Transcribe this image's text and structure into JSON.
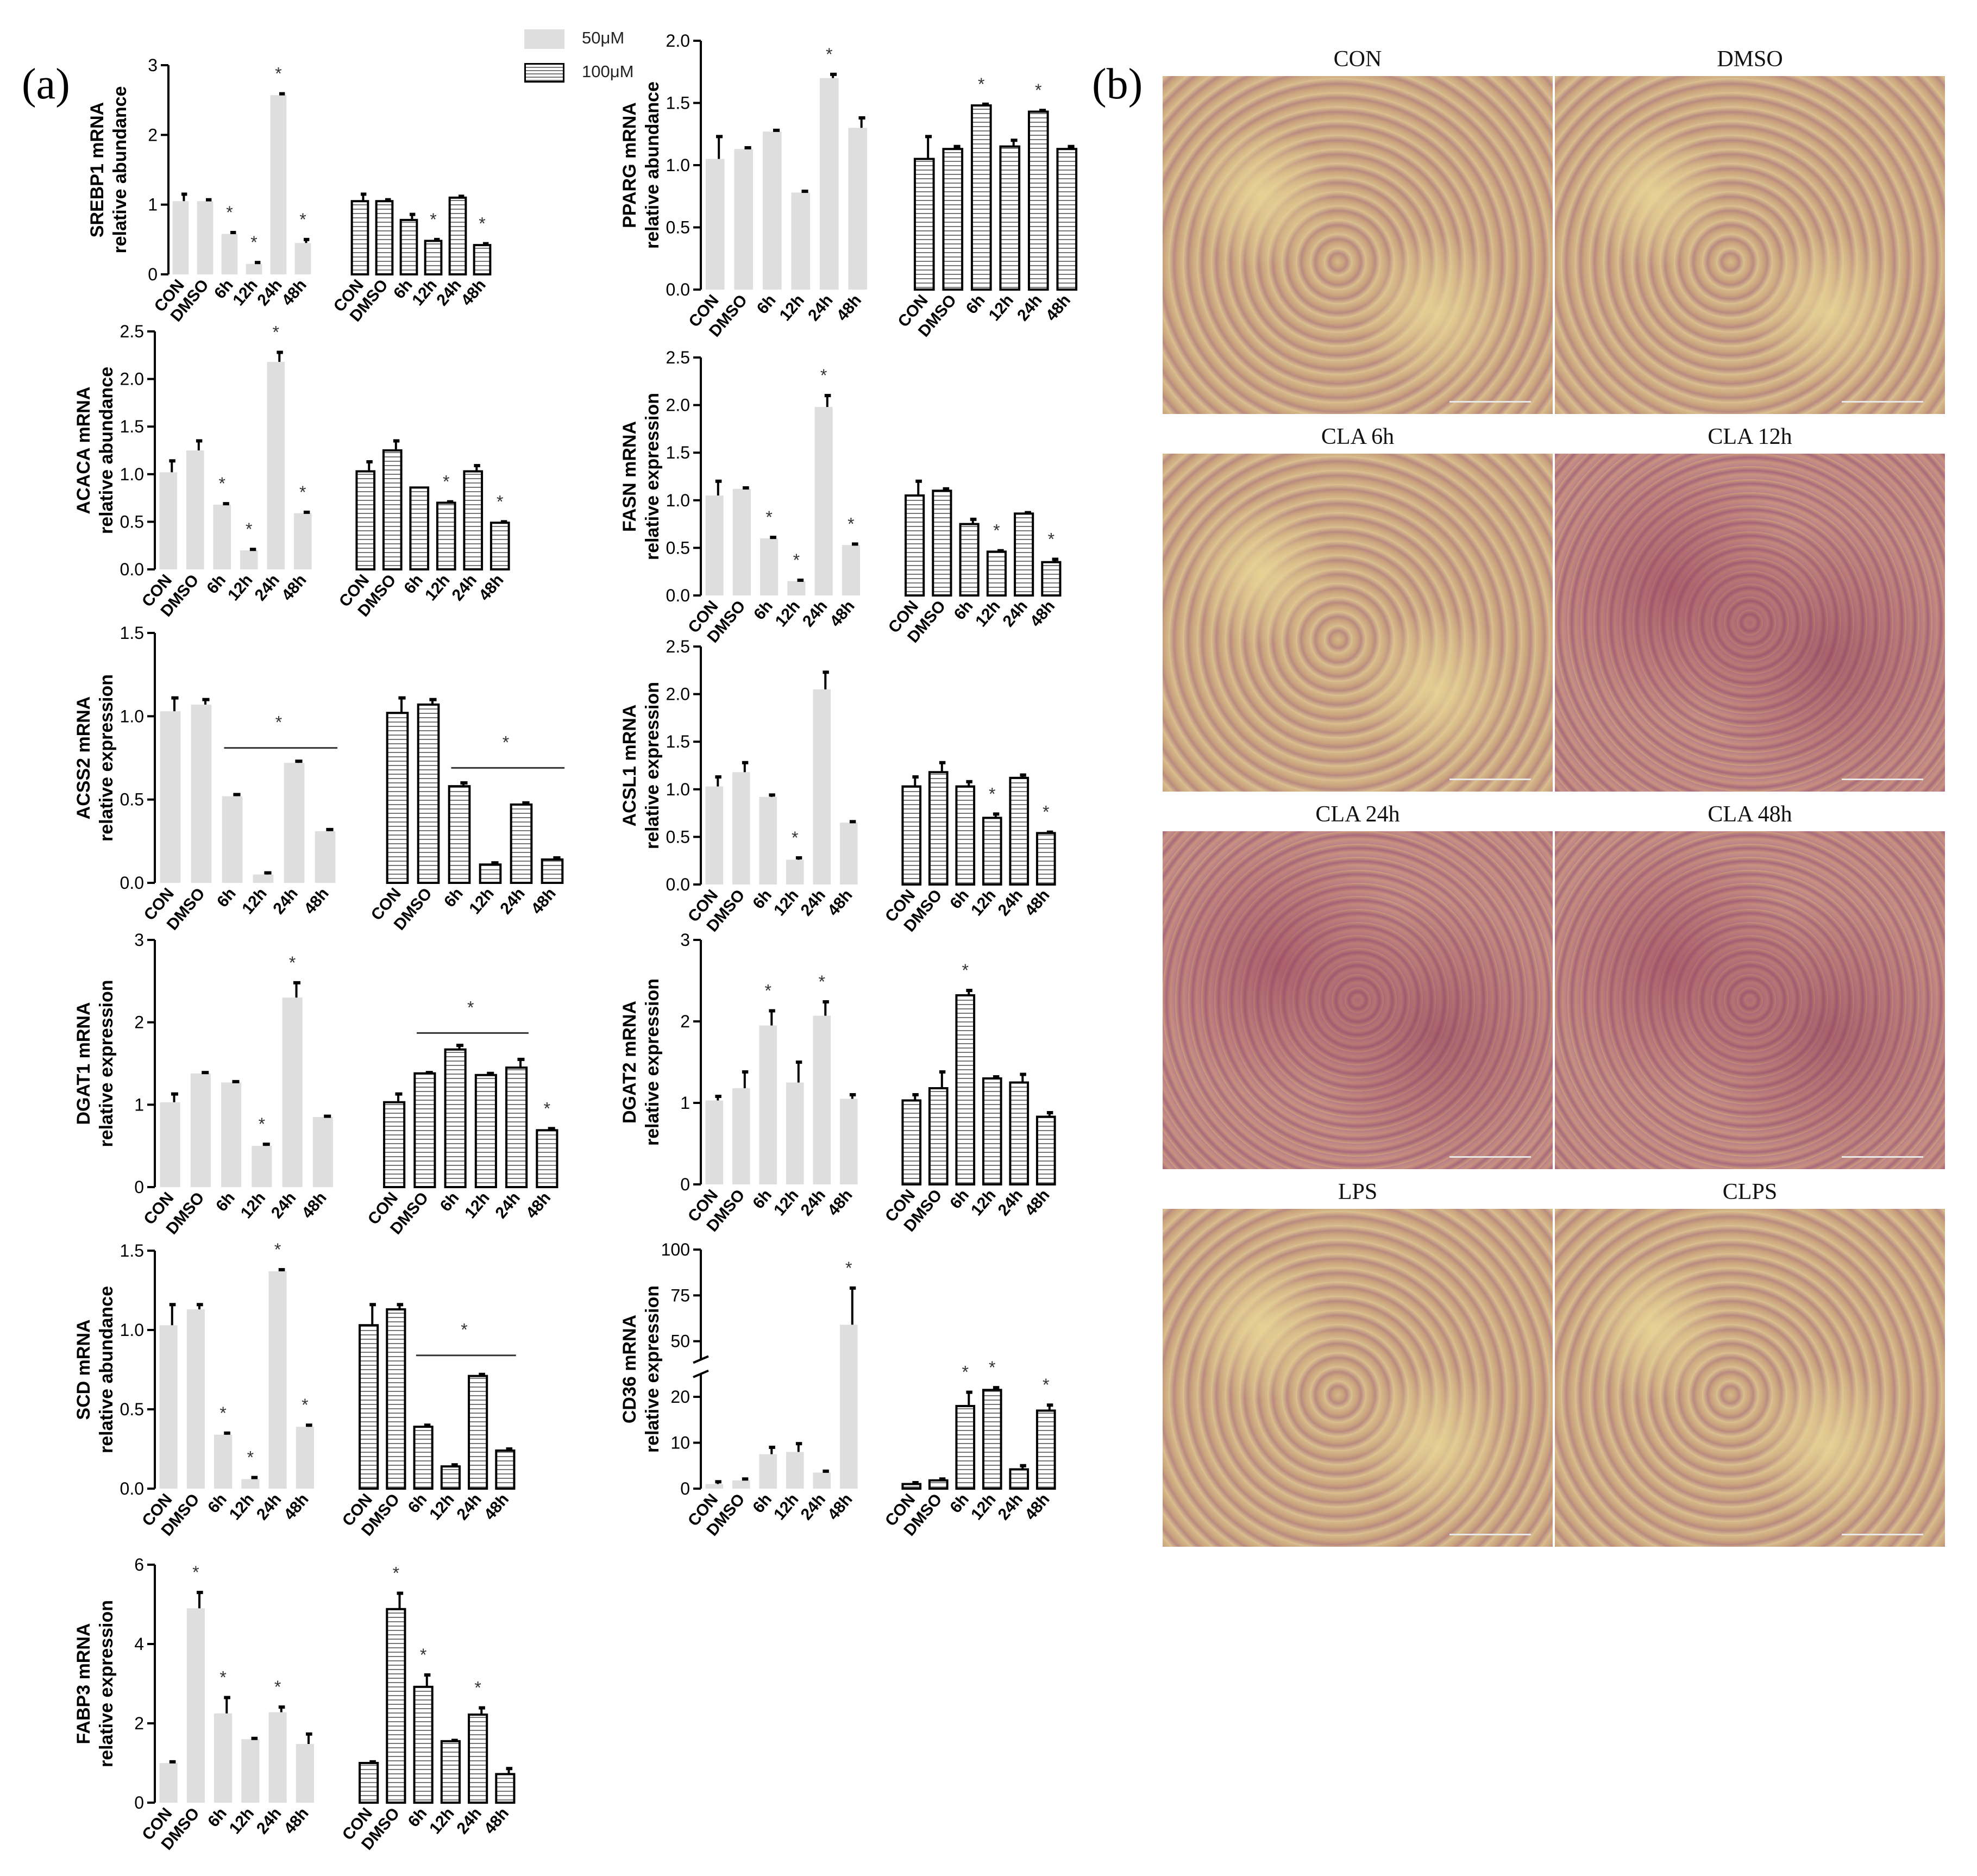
{
  "panel_a_label": "(a)",
  "panel_b_label": "(b)",
  "legend": [
    {
      "label": "50μM",
      "pattern": "solid"
    },
    {
      "label": "100μM",
      "pattern": "hstripe"
    }
  ],
  "colors": {
    "bar_fill": "#dedede",
    "bar_stroke": "#000000",
    "stripe": "#777777",
    "axis": "#000000"
  },
  "chart_data": [
    {
      "type": "bar",
      "gene": "SREBP1",
      "ylabel_lines": [
        "SREBP1 mRNA",
        "relative abundance"
      ],
      "categories": [
        "CON",
        "DMSO",
        "6h",
        "12h",
        "24h",
        "48h"
      ],
      "ylim": [
        0,
        3
      ],
      "yticks": [
        0,
        1,
        2,
        3
      ],
      "series": [
        {
          "name": "50μM",
          "values": [
            1.05,
            1.05,
            0.58,
            0.15,
            2.57,
            0.45
          ],
          "errors": [
            0.1,
            0.02,
            0.02,
            0.02,
            0.02,
            0.05
          ],
          "sig": [
            "",
            "",
            "*",
            "*",
            "*",
            "*"
          ]
        },
        {
          "name": "100μM",
          "values": [
            1.05,
            1.05,
            0.78,
            0.48,
            1.1,
            0.42
          ],
          "errors": [
            0.1,
            0.02,
            0.08,
            0.02,
            0.02,
            0.02
          ],
          "sig": [
            "",
            "",
            "",
            "*",
            "",
            "*"
          ]
        }
      ],
      "sig_lines": []
    },
    {
      "type": "bar",
      "gene": "PPARG",
      "ylabel_lines": [
        "PPARG mRNA",
        "relative abundance"
      ],
      "categories": [
        "CON",
        "DMSO",
        "6h",
        "12h",
        "24h",
        "48h"
      ],
      "ylim": [
        0,
        2.0
      ],
      "yticks": [
        0.0,
        0.5,
        1.0,
        1.5,
        2.0
      ],
      "series": [
        {
          "name": "50μM",
          "values": [
            1.05,
            1.13,
            1.27,
            0.78,
            1.7,
            1.3
          ],
          "errors": [
            0.18,
            0.01,
            0.01,
            0.01,
            0.03,
            0.08
          ],
          "sig": [
            "",
            "",
            "",
            "",
            "*",
            ""
          ]
        },
        {
          "name": "100μM",
          "values": [
            1.05,
            1.13,
            1.48,
            1.15,
            1.43,
            1.13
          ],
          "errors": [
            0.18,
            0.02,
            0.01,
            0.05,
            0.01,
            0.02
          ],
          "sig": [
            "",
            "",
            "*",
            "",
            "*",
            ""
          ]
        }
      ],
      "sig_lines": []
    },
    {
      "type": "bar",
      "gene": "ACACA",
      "ylabel_lines": [
        "ACACA mRNA",
        "relative abundance"
      ],
      "categories": [
        "CON",
        "DMSO",
        "6h",
        "12h",
        "24h",
        "48h"
      ],
      "ylim": [
        0,
        2.5
      ],
      "yticks": [
        0.0,
        0.5,
        1.0,
        1.5,
        2.0,
        2.5
      ],
      "series": [
        {
          "name": "50μM",
          "values": [
            1.02,
            1.25,
            0.68,
            0.2,
            2.18,
            0.59
          ],
          "errors": [
            0.12,
            0.1,
            0.01,
            0.01,
            0.1,
            0.01
          ],
          "sig": [
            "",
            "",
            "*",
            "*",
            "*",
            "*"
          ]
        },
        {
          "name": "100μM",
          "values": [
            1.03,
            1.25,
            0.86,
            0.7,
            1.03,
            0.49
          ],
          "errors": [
            0.1,
            0.1,
            0.0,
            0.01,
            0.06,
            0.01
          ],
          "sig": [
            "",
            "",
            "",
            "*",
            "",
            "*"
          ]
        }
      ],
      "sig_lines": []
    },
    {
      "type": "bar",
      "gene": "FASN",
      "ylabel_lines": [
        "FASN mRNA",
        "relative expression"
      ],
      "categories": [
        "CON",
        "DMSO",
        "6h",
        "12h",
        "24h",
        "48h"
      ],
      "ylim": [
        0,
        2.5
      ],
      "yticks": [
        0.0,
        0.5,
        1.0,
        1.5,
        2.0,
        2.5
      ],
      "series": [
        {
          "name": "50μM",
          "values": [
            1.05,
            1.12,
            0.6,
            0.15,
            1.98,
            0.53
          ],
          "errors": [
            0.15,
            0.01,
            0.01,
            0.01,
            0.12,
            0.01
          ],
          "sig": [
            "",
            "",
            "*",
            "*",
            "*",
            "*"
          ]
        },
        {
          "name": "100μM",
          "values": [
            1.05,
            1.1,
            0.75,
            0.46,
            0.86,
            0.35
          ],
          "errors": [
            0.15,
            0.02,
            0.05,
            0.01,
            0.01,
            0.03
          ],
          "sig": [
            "",
            "",
            "",
            "*",
            "",
            "*"
          ]
        }
      ],
      "sig_lines": []
    },
    {
      "type": "bar",
      "gene": "ACSS2",
      "ylabel_lines": [
        "ACSS2 mRNA",
        "relative expression"
      ],
      "categories": [
        "CON",
        "DMSO",
        "6h",
        "12h",
        "24h",
        "48h"
      ],
      "ylim": [
        0,
        1.5
      ],
      "yticks": [
        0.0,
        0.5,
        1.0,
        1.5
      ],
      "series": [
        {
          "name": "50μM",
          "values": [
            1.03,
            1.07,
            0.52,
            0.05,
            0.72,
            0.31
          ],
          "errors": [
            0.08,
            0.03,
            0.01,
            0.01,
            0.01,
            0.01
          ],
          "sig": [
            "",
            "",
            "",
            "",
            "",
            ""
          ]
        },
        {
          "name": "100μM",
          "values": [
            1.02,
            1.07,
            0.58,
            0.11,
            0.47,
            0.14
          ],
          "errors": [
            0.09,
            0.03,
            0.02,
            0.01,
            0.01,
            0.01
          ],
          "sig": [
            "",
            "",
            "",
            "",
            "",
            ""
          ]
        }
      ],
      "sig_lines": [
        {
          "series": 0,
          "from": 2,
          "to": 5,
          "y": 0.81
        },
        {
          "series": 1,
          "from": 2,
          "to": 5,
          "y": 0.69
        }
      ]
    },
    {
      "type": "bar",
      "gene": "ACSL1",
      "ylabel_lines": [
        "ACSL1 mRNA",
        "relative expression"
      ],
      "categories": [
        "CON",
        "DMSO",
        "6h",
        "12h",
        "24h",
        "48h"
      ],
      "ylim": [
        0,
        2.5
      ],
      "yticks": [
        0.0,
        0.5,
        1.0,
        1.5,
        2.0,
        2.5
      ],
      "series": [
        {
          "name": "50μM",
          "values": [
            1.03,
            1.18,
            0.92,
            0.26,
            2.05,
            0.65
          ],
          "errors": [
            0.1,
            0.1,
            0.02,
            0.02,
            0.18,
            0.01
          ],
          "sig": [
            "",
            "",
            "",
            "*",
            "",
            ""
          ]
        },
        {
          "name": "100μM",
          "values": [
            1.03,
            1.18,
            1.03,
            0.7,
            1.12,
            0.54
          ],
          "errors": [
            0.1,
            0.1,
            0.05,
            0.04,
            0.03,
            0.01
          ],
          "sig": [
            "",
            "",
            "",
            "*",
            "",
            "*"
          ]
        }
      ],
      "sig_lines": []
    },
    {
      "type": "bar",
      "gene": "DGAT1",
      "ylabel_lines": [
        "DGAT1 mRNA",
        "relative expression"
      ],
      "categories": [
        "CON",
        "DMSO",
        "6h",
        "12h",
        "24h",
        "48h"
      ],
      "ylim": [
        0,
        3
      ],
      "yticks": [
        0,
        1,
        2,
        3
      ],
      "series": [
        {
          "name": "50μM",
          "values": [
            1.03,
            1.38,
            1.27,
            0.5,
            2.3,
            0.85
          ],
          "errors": [
            0.1,
            0.01,
            0.01,
            0.02,
            0.18,
            0.01
          ],
          "sig": [
            "",
            "",
            "",
            "*",
            "*",
            ""
          ]
        },
        {
          "name": "100μM",
          "values": [
            1.03,
            1.38,
            1.67,
            1.36,
            1.45,
            0.69
          ],
          "errors": [
            0.1,
            0.01,
            0.05,
            0.02,
            0.1,
            0.02
          ],
          "sig": [
            "",
            "",
            "",
            "",
            "",
            "*"
          ]
        }
      ],
      "sig_lines": [
        {
          "series": 1,
          "from": 1,
          "to": 4,
          "y": 1.87
        }
      ]
    },
    {
      "type": "bar",
      "gene": "DGAT2",
      "ylabel_lines": [
        "DGAT2 mRNA",
        "relative expression"
      ],
      "categories": [
        "CON",
        "DMSO",
        "6h",
        "12h",
        "24h",
        "48h"
      ],
      "ylim": [
        0,
        3
      ],
      "yticks": [
        0,
        1,
        2,
        3
      ],
      "series": [
        {
          "name": "50μM",
          "values": [
            1.03,
            1.18,
            1.95,
            1.25,
            2.07,
            1.05
          ],
          "errors": [
            0.05,
            0.2,
            0.18,
            0.25,
            0.17,
            0.05
          ],
          "sig": [
            "",
            "",
            "*",
            "",
            "*",
            ""
          ]
        },
        {
          "name": "100μM",
          "values": [
            1.03,
            1.18,
            2.32,
            1.3,
            1.25,
            0.83
          ],
          "errors": [
            0.07,
            0.2,
            0.06,
            0.02,
            0.1,
            0.05
          ],
          "sig": [
            "",
            "",
            "*",
            "",
            "",
            ""
          ]
        }
      ],
      "sig_lines": []
    },
    {
      "type": "bar",
      "gene": "SCD",
      "ylabel_lines": [
        "SCD mRNA",
        "relative abundance"
      ],
      "categories": [
        "CON",
        "DMSO",
        "6h",
        "12h",
        "24h",
        "48h"
      ],
      "ylim": [
        0,
        1.5
      ],
      "yticks": [
        0.0,
        0.5,
        1.0,
        1.5
      ],
      "series": [
        {
          "name": "50μM",
          "values": [
            1.03,
            1.13,
            0.34,
            0.06,
            1.37,
            0.39
          ],
          "errors": [
            0.13,
            0.03,
            0.01,
            0.01,
            0.01,
            0.01
          ],
          "sig": [
            "",
            "",
            "*",
            "*",
            "*",
            "*"
          ]
        },
        {
          "name": "100μM",
          "values": [
            1.03,
            1.13,
            0.39,
            0.14,
            0.71,
            0.24
          ],
          "errors": [
            0.13,
            0.03,
            0.01,
            0.01,
            0.01,
            0.01
          ],
          "sig": [
            "",
            "",
            "",
            "",
            "",
            ""
          ]
        }
      ],
      "sig_lines": [
        {
          "series": 1,
          "from": 2,
          "to": 5,
          "y": 0.84
        }
      ]
    },
    {
      "type": "bar",
      "gene": "CD36",
      "ylabel_lines": [
        "CD36 mRNA",
        "relative expression"
      ],
      "categories": [
        "CON",
        "DMSO",
        "6h",
        "12h",
        "24h",
        "48h"
      ],
      "ylim": [
        0,
        100
      ],
      "yticks": [
        0,
        10,
        20,
        50,
        75,
        100
      ],
      "axis_break": [
        25,
        40
      ],
      "series": [
        {
          "name": "50μM",
          "values": [
            1.0,
            1.8,
            7.5,
            8.0,
            3.5,
            59.0
          ],
          "errors": [
            0.5,
            0.3,
            1.5,
            1.8,
            0.3,
            20.0
          ],
          "sig": [
            "",
            "",
            "",
            "",
            "",
            "*"
          ]
        },
        {
          "name": "100μM",
          "values": [
            1.0,
            1.8,
            18.0,
            21.5,
            4.2,
            17.0
          ],
          "errors": [
            0.3,
            0.3,
            3.0,
            0.5,
            0.8,
            1.2
          ],
          "sig": [
            "",
            "",
            "*",
            "*",
            "",
            "*"
          ]
        }
      ],
      "sig_lines": []
    },
    {
      "type": "bar",
      "gene": "FABP3",
      "ylabel_lines": [
        "FABP3 mRNA",
        "relative expression"
      ],
      "categories": [
        "CON",
        "DMSO",
        "6h",
        "12h",
        "24h",
        "48h"
      ],
      "ylim": [
        0,
        6
      ],
      "yticks": [
        0,
        2,
        4,
        6
      ],
      "series": [
        {
          "name": "50μM",
          "values": [
            1.0,
            4.9,
            2.25,
            1.6,
            2.28,
            1.48
          ],
          "errors": [
            0.03,
            0.4,
            0.4,
            0.02,
            0.13,
            0.25
          ],
          "sig": [
            "",
            "*",
            "*",
            "",
            "*",
            ""
          ]
        },
        {
          "name": "100μM",
          "values": [
            1.0,
            4.88,
            2.92,
            1.55,
            2.22,
            0.72
          ],
          "errors": [
            0.03,
            0.4,
            0.3,
            0.02,
            0.17,
            0.14
          ],
          "sig": [
            "",
            "*",
            "*",
            "",
            "*",
            ""
          ]
        }
      ],
      "sig_lines": []
    }
  ],
  "micrographs": [
    {
      "title": "CON",
      "stain": "light"
    },
    {
      "title": "DMSO",
      "stain": "light"
    },
    {
      "title": "CLA 6h",
      "stain": "light"
    },
    {
      "title": "CLA 12h",
      "stain": "dense"
    },
    {
      "title": "CLA 24h",
      "stain": "dense"
    },
    {
      "title": "CLA 48h",
      "stain": "dense"
    },
    {
      "title": "LPS",
      "stain": "light"
    },
    {
      "title": "CLPS",
      "stain": "light"
    }
  ]
}
